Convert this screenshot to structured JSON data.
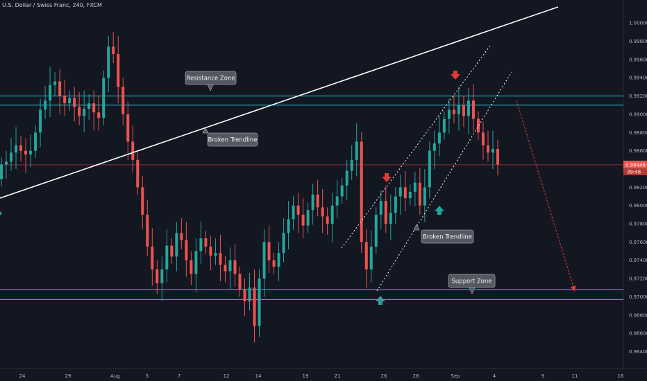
{
  "header": {
    "title": "U.S. Dollar / Swiss Franc, 240, FXCM"
  },
  "chart_data": {
    "type": "candlestick",
    "symbol": "U.S. Dollar / Swiss Franc",
    "interval": "240",
    "source": "FXCM",
    "y_ticks": [
      "1.00000",
      "0.99800",
      "0.99600",
      "0.99400",
      "0.99200",
      "0.99000",
      "0.98800",
      "0.98600",
      "0.98400",
      "0.98200",
      "0.98000",
      "0.97800",
      "0.97600",
      "0.97400",
      "0.97200",
      "0.97000",
      "0.96800",
      "0.96600",
      "0.96400"
    ],
    "ylim": [
      0.9632,
      1.001
    ],
    "x_ticks": [
      "24",
      "29",
      "Aug",
      "5",
      "7",
      "12",
      "14",
      "19",
      "21",
      "26",
      "28",
      "Sep",
      "4",
      "9",
      "11",
      "16"
    ],
    "last_price": {
      "value": "0.98446",
      "countdown": "39:48",
      "price": 0.98446
    },
    "zones": {
      "resistance": {
        "label": "Resistance Zone",
        "upper": 0.992,
        "lower": 0.991
      },
      "support": {
        "label": "Support Zone",
        "upper": 0.9708,
        "lower": 0.9697
      }
    },
    "trendlines": {
      "long_label": "Broken Trendline",
      "channel_label": "Broken Trendline"
    },
    "price_path": [
      [
        0.9829,
        0.9845
      ],
      [
        0.9845,
        0.9848
      ],
      [
        0.9848,
        0.9858
      ],
      [
        0.9858,
        0.9866
      ],
      [
        0.9866,
        0.986
      ],
      [
        0.986,
        0.9856
      ],
      [
        0.9856,
        0.986
      ],
      [
        0.986,
        0.988
      ],
      [
        0.988,
        0.9905
      ],
      [
        0.9905,
        0.9915
      ],
      [
        0.9915,
        0.9932
      ],
      [
        0.9932,
        0.9936
      ],
      [
        0.9936,
        0.992
      ],
      [
        0.992,
        0.9912
      ],
      [
        0.9912,
        0.9918
      ],
      [
        0.9918,
        0.9908
      ],
      [
        0.9908,
        0.9898
      ],
      [
        0.9898,
        0.9906
      ],
      [
        0.9906,
        0.9912
      ],
      [
        0.9912,
        0.9902
      ],
      [
        0.9902,
        0.9896
      ],
      [
        0.9896,
        0.994
      ],
      [
        0.994,
        0.9974
      ],
      [
        0.9974,
        0.9966
      ],
      [
        0.9966,
        0.993
      ],
      [
        0.993,
        0.99
      ],
      [
        0.99,
        0.987
      ],
      [
        0.987,
        0.985
      ],
      [
        0.985,
        0.982
      ],
      [
        0.982,
        0.979
      ],
      [
        0.979,
        0.9755
      ],
      [
        0.9755,
        0.973
      ],
      [
        0.973,
        0.9715
      ],
      [
        0.9715,
        0.973
      ],
      [
        0.973,
        0.9756
      ],
      [
        0.9756,
        0.9744
      ],
      [
        0.9744,
        0.977
      ],
      [
        0.977,
        0.9762
      ],
      [
        0.9762,
        0.974
      ],
      [
        0.974,
        0.9725
      ],
      [
        0.9725,
        0.975
      ],
      [
        0.975,
        0.9764
      ],
      [
        0.9764,
        0.9755
      ],
      [
        0.9755,
        0.9745
      ],
      [
        0.9745,
        0.9748
      ],
      [
        0.9748,
        0.9735
      ],
      [
        0.9735,
        0.9728
      ],
      [
        0.9728,
        0.974
      ],
      [
        0.974,
        0.9725
      ],
      [
        0.9725,
        0.9708
      ],
      [
        0.9708,
        0.9695
      ],
      [
        0.9695,
        0.971
      ],
      [
        0.971,
        0.9668
      ],
      [
        0.9668,
        0.972
      ],
      [
        0.972,
        0.976
      ],
      [
        0.976,
        0.974
      ],
      [
        0.974,
        0.9733
      ],
      [
        0.9733,
        0.9748
      ],
      [
        0.9748,
        0.977
      ],
      [
        0.977,
        0.9785
      ],
      [
        0.9785,
        0.98
      ],
      [
        0.98,
        0.979
      ],
      [
        0.979,
        0.9778
      ],
      [
        0.9778,
        0.9795
      ],
      [
        0.9795,
        0.9812
      ],
      [
        0.9812,
        0.9798
      ],
      [
        0.9798,
        0.9788
      ],
      [
        0.9788,
        0.978
      ],
      [
        0.978,
        0.98
      ],
      [
        0.98,
        0.981
      ],
      [
        0.981,
        0.9822
      ],
      [
        0.9822,
        0.9838
      ],
      [
        0.9838,
        0.985
      ],
      [
        0.985,
        0.987
      ],
      [
        0.987,
        0.976
      ],
      [
        0.976,
        0.973
      ],
      [
        0.973,
        0.9755
      ],
      [
        0.9755,
        0.979
      ],
      [
        0.979,
        0.9805
      ],
      [
        0.9805,
        0.978
      ],
      [
        0.978,
        0.9792
      ],
      [
        0.9792,
        0.981
      ],
      [
        0.981,
        0.982
      ],
      [
        0.982,
        0.9808
      ],
      [
        0.9808,
        0.9815
      ],
      [
        0.9815,
        0.9825
      ],
      [
        0.9825,
        0.98
      ],
      [
        0.98,
        0.982
      ],
      [
        0.982,
        0.986
      ],
      [
        0.986,
        0.9868
      ],
      [
        0.9868,
        0.988
      ],
      [
        0.988,
        0.9895
      ],
      [
        0.9895,
        0.9905
      ],
      [
        0.9905,
        0.99
      ],
      [
        0.99,
        0.991
      ],
      [
        0.991,
        0.9898
      ],
      [
        0.9898,
        0.9915
      ],
      [
        0.9915,
        0.9895
      ],
      [
        0.9895,
        0.988
      ],
      [
        0.988,
        0.9866
      ],
      [
        0.9866,
        0.9858
      ],
      [
        0.9858,
        0.9862
      ],
      [
        0.9862,
        0.9845
      ]
    ],
    "projection": {
      "from": [
        0.9908,
        "Sep 2"
      ],
      "to": [
        0.971,
        "Sep 11"
      ]
    }
  }
}
